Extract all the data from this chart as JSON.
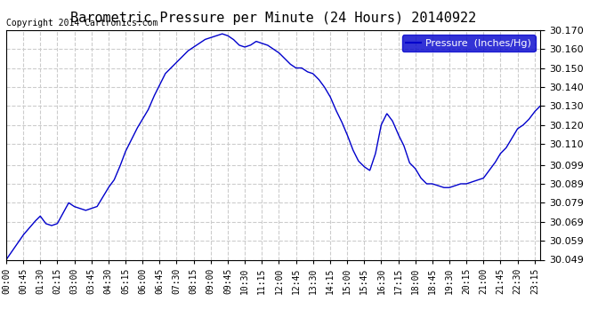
{
  "title": "Barometric Pressure per Minute (24 Hours) 20140922",
  "copyright_text": "Copyright 2014 Cartronics.com",
  "legend_label": "Pressure  (Inches/Hg)",
  "legend_bg": "#0000CC",
  "legend_text_color": "#FFFFFF",
  "line_color": "#0000CC",
  "background_color": "#FFFFFF",
  "grid_color": "#CCCCCC",
  "grid_style": "--",
  "ylim": [
    30.049,
    30.17
  ],
  "yticks": [
    30.049,
    30.059,
    30.069,
    30.079,
    30.089,
    30.099,
    30.11,
    30.12,
    30.13,
    30.14,
    30.15,
    30.16,
    30.17
  ],
  "xtick_labels": [
    "00:00",
    "00:45",
    "01:30",
    "02:15",
    "03:00",
    "03:45",
    "04:30",
    "05:15",
    "06:00",
    "06:45",
    "07:30",
    "08:15",
    "09:00",
    "09:45",
    "10:30",
    "11:15",
    "12:00",
    "12:45",
    "13:30",
    "14:15",
    "15:00",
    "15:45",
    "16:30",
    "17:15",
    "18:00",
    "18:45",
    "19:30",
    "20:15",
    "21:00",
    "21:45",
    "22:30",
    "23:15"
  ],
  "keypoints_x": [
    0,
    45,
    75,
    90,
    105,
    120,
    135,
    165,
    180,
    195,
    210,
    225,
    240,
    255,
    270,
    285,
    300,
    315,
    330,
    345,
    360,
    375,
    390,
    405,
    420,
    435,
    450,
    465,
    480,
    495,
    510,
    525,
    540,
    555,
    570,
    585,
    600,
    615,
    630,
    645,
    660,
    675,
    690,
    705,
    720,
    735,
    750,
    765,
    780,
    795,
    810,
    825,
    840,
    855,
    870,
    885,
    900,
    915,
    930,
    945,
    960,
    975,
    990,
    1005,
    1020,
    1035,
    1050,
    1065,
    1080,
    1095,
    1110,
    1125,
    1140,
    1155,
    1170,
    1185,
    1200,
    1215,
    1230,
    1245,
    1260,
    1275,
    1290,
    1305,
    1320,
    1335,
    1350,
    1365,
    1380,
    1395,
    1410
  ],
  "keypoints_y": [
    30.049,
    30.062,
    30.069,
    30.072,
    30.068,
    30.067,
    30.068,
    30.079,
    30.077,
    30.076,
    30.075,
    30.076,
    30.077,
    30.082,
    30.087,
    30.091,
    30.098,
    30.106,
    30.112,
    30.118,
    30.123,
    30.128,
    30.135,
    30.141,
    30.147,
    30.15,
    30.153,
    30.156,
    30.159,
    30.161,
    30.163,
    30.165,
    30.166,
    30.167,
    30.168,
    30.167,
    30.165,
    30.162,
    30.161,
    30.162,
    30.164,
    30.163,
    30.162,
    30.16,
    30.158,
    30.155,
    30.152,
    30.15,
    30.15,
    30.148,
    30.147,
    30.144,
    30.14,
    30.135,
    30.128,
    30.122,
    30.115,
    30.107,
    30.101,
    30.098,
    30.096,
    30.105,
    30.12,
    30.126,
    30.122,
    30.115,
    30.109,
    30.1,
    30.097,
    30.092,
    30.089,
    30.089,
    30.088,
    30.087,
    30.087,
    30.088,
    30.089,
    30.089,
    30.09,
    30.091,
    30.092,
    30.096,
    30.1,
    30.105,
    30.108,
    30.113,
    30.118,
    30.12,
    30.123,
    30.127,
    30.13
  ]
}
